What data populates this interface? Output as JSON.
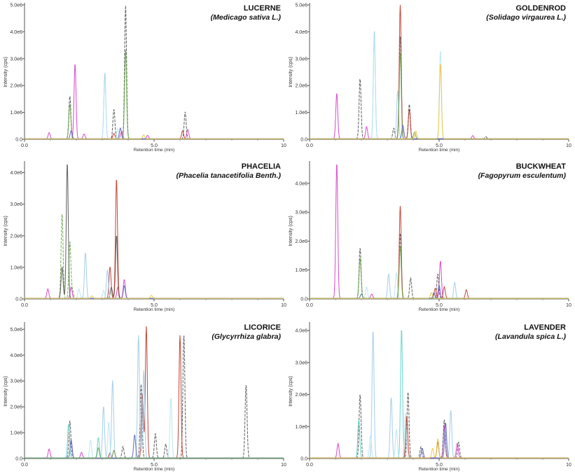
{
  "chart_data": [
    {
      "type": "line",
      "title": "LUCERNE",
      "subtitle": "(Medicago sativa L.)",
      "xlabel": "Retention time (min)",
      "ylabel": "Intensity (cps)",
      "xlim": [
        0,
        10
      ],
      "ylim": [
        0,
        5000000
      ],
      "xticks": [
        "0.0",
        "5.0",
        "10"
      ],
      "yticks": [
        "0.0",
        "1.0e6",
        "2.0e6",
        "3.0e6",
        "4.0e6",
        "5.0e6"
      ],
      "series": [
        {
          "color": "#d63fc8",
          "peaks": [
            [
              0.95,
              230000
            ],
            [
              1.95,
              2800000
            ],
            [
              2.3,
              180000
            ],
            [
              3.75,
              280000
            ],
            [
              4.75,
              130000
            ],
            [
              6.3,
              350000
            ]
          ]
        },
        {
          "color": "#555555",
          "peaks": [
            [
              1.75,
              1600000
            ],
            [
              3.45,
              1100000
            ],
            [
              3.9,
              4950000
            ],
            [
              6.2,
              1000000
            ]
          ]
        },
        {
          "color": "#6aa84f",
          "peaks": [
            [
              1.75,
              1300000
            ],
            [
              3.9,
              3300000
            ]
          ]
        },
        {
          "color": "#c0392b",
          "peaks": [
            [
              6.1,
              300000
            ],
            [
              3.45,
              200000
            ]
          ]
        },
        {
          "color": "#9ecbea",
          "peaks": [
            [
              3.1,
              2450000
            ]
          ]
        },
        {
          "color": "#b8e4f0",
          "peaks": [
            [
              3.1,
              2200000
            ],
            [
              3.6,
              380000
            ]
          ]
        },
        {
          "color": "#5b5fbf",
          "peaks": [
            [
              3.7,
              400000
            ],
            [
              1.8,
              300000
            ]
          ]
        },
        {
          "color": "#e8c840",
          "peaks": [
            [
              4.6,
              150000
            ]
          ]
        }
      ]
    },
    {
      "type": "line",
      "title": "GOLDENROD",
      "subtitle": "(Solidago virgaurea L.)",
      "xlabel": "Retention time (min)",
      "ylabel": "Intensity (cps)",
      "xlim": [
        0,
        10
      ],
      "ylim": [
        0,
        5000000
      ],
      "xticks": [
        "0.0",
        "5.0",
        "10"
      ],
      "yticks": [
        "0.0",
        "1.0e6",
        "2.0e6",
        "3.0e6",
        "4.0e6",
        "5.0e6"
      ],
      "series": [
        {
          "color": "#d63fc8",
          "peaks": [
            [
              1.05,
              1700000
            ],
            [
              2.2,
              450000
            ],
            [
              6.3,
              120000
            ]
          ]
        },
        {
          "color": "#555555",
          "peaks": [
            [
              1.95,
              2250000
            ],
            [
              3.25,
              400000
            ],
            [
              3.5,
              3800000
            ],
            [
              3.85,
              1300000
            ],
            [
              6.8,
              80000
            ]
          ]
        },
        {
          "color": "#c0392b",
          "peaks": [
            [
              3.5,
              5000000
            ],
            [
              3.85,
              1100000
            ]
          ]
        },
        {
          "color": "#9ecbea",
          "peaks": [
            [
              2.5,
              4000000
            ],
            [
              3.4,
              1800000
            ]
          ]
        },
        {
          "color": "#b8e4f0",
          "peaks": [
            [
              2.5,
              3800000
            ],
            [
              5.05,
              3300000
            ]
          ]
        },
        {
          "color": "#6aa84f",
          "peaks": [
            [
              3.5,
              3200000
            ],
            [
              4.05,
              250000
            ]
          ]
        },
        {
          "color": "#5b5fbf",
          "peaks": [
            [
              3.6,
              500000
            ]
          ]
        },
        {
          "color": "#e8c840",
          "peaks": [
            [
              4.1,
              280000
            ],
            [
              5.05,
              2800000
            ]
          ]
        }
      ]
    },
    {
      "type": "line",
      "title": "PHACELIA",
      "subtitle": "(Phacelia tanacetifolia Benth.)",
      "xlabel": "Retention time (min)",
      "ylabel": "Intensity (cps)",
      "xlim": [
        0,
        10
      ],
      "ylim": [
        0,
        4300000
      ],
      "xticks": [
        "0.0",
        "5.0",
        "10"
      ],
      "yticks": [
        "0.0",
        "1.0e6",
        "2.0e6",
        "3.0e6",
        "4.0e6"
      ],
      "series": [
        {
          "color": "#d63fc8",
          "peaks": [
            [
              0.9,
              300000
            ],
            [
              1.8,
              350000
            ],
            [
              3.6,
              350000
            ],
            [
              3.85,
              600000
            ]
          ]
        },
        {
          "color": "#6aa84f",
          "peaks": [
            [
              1.45,
              2700000
            ],
            [
              1.75,
              1800000
            ],
            [
              1.85,
              250000
            ]
          ]
        },
        {
          "color": "#555555",
          "peaks": [
            [
              1.45,
              1000000
            ],
            [
              1.65,
              4300000
            ],
            [
              3.35,
              350000
            ],
            [
              3.55,
              2000000
            ]
          ]
        },
        {
          "color": "#c0392b",
          "peaks": [
            [
              3.55,
              3800000
            ],
            [
              3.3,
              1000000
            ]
          ]
        },
        {
          "color": "#9ecbea",
          "peaks": [
            [
              2.35,
              1450000
            ],
            [
              3.2,
              900000
            ]
          ]
        },
        {
          "color": "#b8e4f0",
          "peaks": [
            [
              2.1,
              300000
            ],
            [
              3.05,
              250000
            ]
          ]
        },
        {
          "color": "#5b5fbf",
          "peaks": [
            [
              3.85,
              400000
            ]
          ]
        },
        {
          "color": "#e8c840",
          "peaks": [
            [
              4.9,
              100000
            ],
            [
              2.6,
              80000
            ]
          ]
        }
      ]
    },
    {
      "type": "line",
      "title": "BUCKWHEAT",
      "subtitle": "(Fagopyrum esculentum)",
      "xlabel": "Retention time (min)",
      "ylabel": "Intensity (cps)",
      "xlim": [
        0,
        10
      ],
      "ylim": [
        0,
        4700000
      ],
      "xticks": [
        "0.0",
        "5.0",
        "10"
      ],
      "yticks": [
        "0.0",
        "1.0e6",
        "2.0e6",
        "3.0e6",
        "4.0e6"
      ],
      "series": [
        {
          "color": "#d63fc8",
          "peaks": [
            [
              1.05,
              4700000
            ],
            [
              2.4,
              150000
            ],
            [
              5.05,
              1300000
            ]
          ]
        },
        {
          "color": "#555555",
          "peaks": [
            [
              1.95,
              1750000
            ],
            [
              3.5,
              2250000
            ],
            [
              3.9,
              700000
            ],
            [
              4.95,
              850000
            ]
          ]
        },
        {
          "color": "#c0392b",
          "peaks": [
            [
              3.5,
              3200000
            ],
            [
              4.85,
              350000
            ],
            [
              5.2,
              400000
            ],
            [
              6.05,
              300000
            ]
          ]
        },
        {
          "color": "#9ecbea",
          "peaks": [
            [
              3.05,
              850000
            ],
            [
              5.6,
              550000
            ]
          ]
        },
        {
          "color": "#b8e4f0",
          "peaks": [
            [
              2.2,
              400000
            ],
            [
              3.35,
              900000
            ]
          ]
        },
        {
          "color": "#5b5fbf",
          "peaks": [
            [
              2.0,
              150000
            ],
            [
              4.8,
              200000
            ],
            [
              5.0,
              450000
            ]
          ]
        },
        {
          "color": "#6aa84f",
          "peaks": [
            [
              1.95,
              1400000
            ],
            [
              3.5,
              1800000
            ]
          ]
        },
        {
          "color": "#e8c840",
          "peaks": [
            [
              4.7,
              200000
            ]
          ]
        }
      ]
    },
    {
      "type": "line",
      "title": "LICORICE",
      "subtitle": "(Glycyrrhiza glabra)",
      "xlabel": "Retention time (min)",
      "ylabel": "Intensity (cps)",
      "xlim": [
        0,
        10
      ],
      "ylim": [
        0,
        5200000
      ],
      "xticks": [
        "0.0",
        "5.0",
        "10"
      ],
      "yticks": [
        "0.0",
        "1.0e6",
        "2.0e6",
        "3.0e6",
        "4.0e6",
        "5.0e6"
      ],
      "series": [
        {
          "color": "#d63fc8",
          "peaks": [
            [
              0.95,
              350000
            ],
            [
              2.2,
              220000
            ],
            [
              3.45,
              300000
            ]
          ]
        },
        {
          "color": "#555555",
          "peaks": [
            [
              1.75,
              1450000
            ],
            [
              3.8,
              450000
            ],
            [
              4.5,
              2850000
            ],
            [
              5.05,
              950000
            ],
            [
              5.45,
              550000
            ],
            [
              6.15,
              4800000
            ],
            [
              8.55,
              2850000
            ]
          ]
        },
        {
          "color": "#c0392b",
          "peaks": [
            [
              4.55,
              2500000
            ],
            [
              4.7,
              5100000
            ],
            [
              6.0,
              4750000
            ],
            [
              3.3,
              200000
            ]
          ]
        },
        {
          "color": "#9ecbea",
          "peaks": [
            [
              3.05,
              2000000
            ],
            [
              3.4,
              3000000
            ],
            [
              4.4,
              4750000
            ],
            [
              4.6,
              3400000
            ]
          ]
        },
        {
          "color": "#b8e4f0",
          "peaks": [
            [
              2.55,
              700000
            ],
            [
              3.25,
              1400000
            ],
            [
              5.65,
              2350000
            ]
          ]
        },
        {
          "color": "#5fd3c8",
          "peaks": [
            [
              1.7,
              1300000
            ],
            [
              2.85,
              800000
            ]
          ]
        },
        {
          "color": "#5b5fbf",
          "peaks": [
            [
              1.8,
              700000
            ],
            [
              4.25,
              900000
            ]
          ]
        },
        {
          "color": "#6aa84f",
          "peaks": [
            [
              2.85,
              400000
            ],
            [
              3.45,
              300000
            ]
          ]
        }
      ]
    },
    {
      "type": "line",
      "title": "LAVENDER",
      "subtitle": "(Lavandula spica L.)",
      "xlabel": "Retention time (min)",
      "ylabel": "Intensity (cps)",
      "xlim": [
        0,
        10
      ],
      "ylim": [
        0,
        4200000
      ],
      "xticks": [
        "0.0",
        "5.0",
        "10"
      ],
      "yticks": [
        "0.0",
        "1.0e6",
        "2.0e6",
        "3.0e6",
        "4.0e6"
      ],
      "series": [
        {
          "color": "#d63fc8",
          "peaks": [
            [
              1.1,
              450000
            ],
            [
              5.2,
              1000000
            ],
            [
              5.7,
              450000
            ]
          ]
        },
        {
          "color": "#555555",
          "peaks": [
            [
              1.95,
              2000000
            ],
            [
              3.8,
              2050000
            ],
            [
              4.3,
              350000
            ],
            [
              5.2,
              1200000
            ],
            [
              5.75,
              500000
            ]
          ]
        },
        {
          "color": "#5fd3c8",
          "peaks": [
            [
              3.55,
              4050000
            ],
            [
              1.9,
              1200000
            ]
          ]
        },
        {
          "color": "#9ecbea",
          "peaks": [
            [
              2.45,
              4000000
            ],
            [
              3.15,
              1900000
            ],
            [
              5.45,
              1500000
            ]
          ]
        },
        {
          "color": "#b8e4f0",
          "peaks": [
            [
              2.35,
              700000
            ],
            [
              3.35,
              900000
            ],
            [
              3.7,
              1400000
            ]
          ]
        },
        {
          "color": "#c0392b",
          "peaks": [
            [
              3.75,
              1300000
            ],
            [
              4.95,
              500000
            ]
          ]
        },
        {
          "color": "#5b5fbf",
          "peaks": [
            [
              5.25,
              1100000
            ],
            [
              4.35,
              300000
            ]
          ]
        },
        {
          "color": "#e8c840",
          "peaks": [
            [
              4.95,
              600000
            ],
            [
              4.75,
              300000
            ]
          ]
        }
      ]
    }
  ]
}
